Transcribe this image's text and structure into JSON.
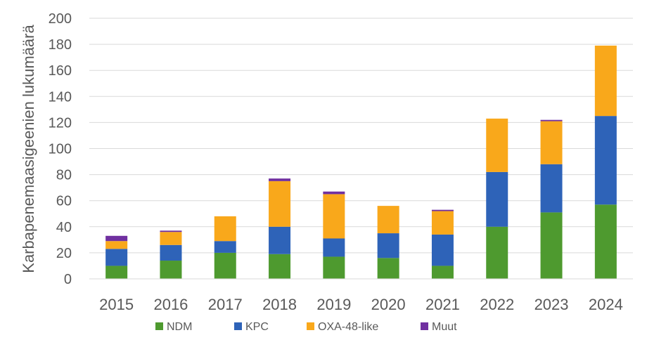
{
  "chart_data": {
    "type": "bar",
    "stacked": true,
    "title": "",
    "xlabel": "",
    "ylabel": "Karbapenemaasigeenien lukumäärä",
    "ylim": [
      0,
      200
    ],
    "yticks": [
      0,
      20,
      40,
      60,
      80,
      100,
      120,
      140,
      160,
      180,
      200
    ],
    "grid": true,
    "legend_position": "bottom",
    "categories": [
      "2015",
      "2016",
      "2017",
      "2018",
      "2019",
      "2020",
      "2021",
      "2022",
      "2023",
      "2024"
    ],
    "series": [
      {
        "name": "NDM",
        "color": "#4e9a2f",
        "values": [
          10,
          14,
          20,
          19,
          17,
          16,
          10,
          40,
          51,
          57
        ]
      },
      {
        "name": "KPC",
        "color": "#2e63b8",
        "values": [
          13,
          12,
          9,
          21,
          14,
          19,
          24,
          42,
          37,
          68
        ]
      },
      {
        "name": "OXA-48-like",
        "color": "#f9a81b",
        "values": [
          6,
          10,
          19,
          35,
          34,
          21,
          18,
          41,
          33,
          54
        ]
      },
      {
        "name": "Muut",
        "color": "#7030a0",
        "values": [
          4,
          1,
          0,
          2,
          2,
          0,
          1,
          0,
          1,
          0
        ]
      }
    ]
  }
}
